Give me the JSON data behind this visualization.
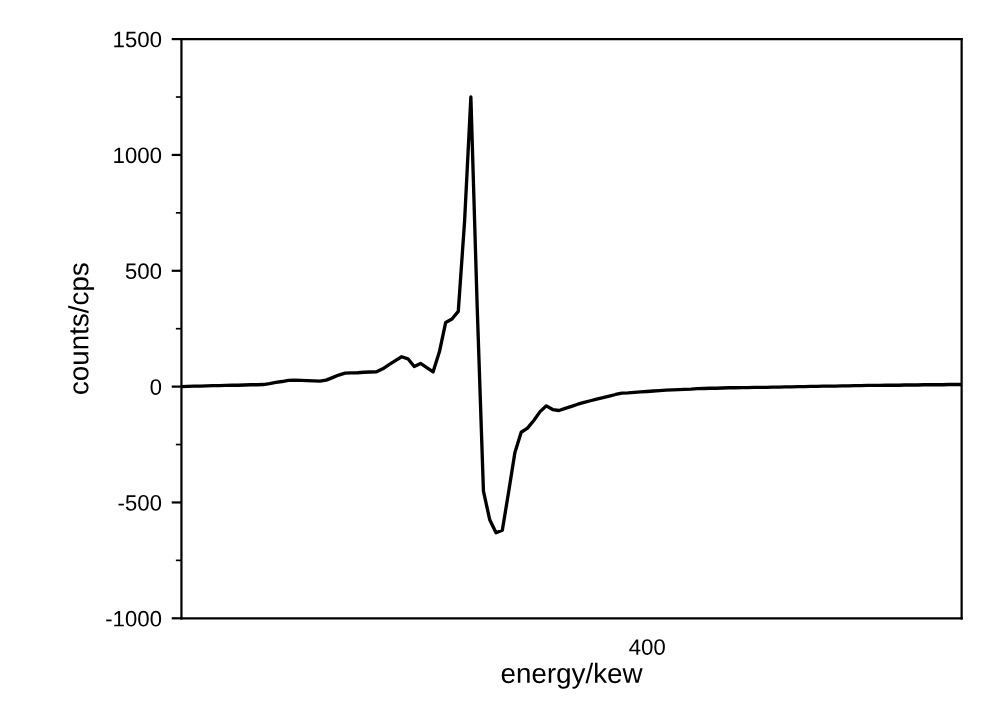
{
  "chart_data": {
    "type": "line",
    "xlabel": "energy/kew",
    "ylabel": "counts/cps",
    "annotations": [
      "400"
    ],
    "categories": [
      null,
      null,
      null,
      null,
      null,
      null,
      null,
      null,
      null,
      null,
      null,
      null,
      null,
      null,
      null,
      null,
      null,
      null,
      null,
      null,
      null,
      null,
      null,
      null,
      null,
      null,
      null,
      null,
      null,
      null,
      null,
      null,
      null,
      null,
      null,
      null,
      null,
      null,
      null,
      null,
      null,
      null,
      null,
      null,
      null,
      null,
      null,
      null,
      null,
      null,
      null,
      null,
      null,
      null,
      null,
      null,
      null,
      null,
      null,
      null,
      null,
      null,
      null,
      null,
      null,
      null,
      null,
      null,
      null,
      null,
      null,
      null,
      null,
      null,
      null,
      null,
      null,
      null,
      null,
      null,
      null,
      null,
      null,
      null,
      null,
      null,
      null,
      null,
      null,
      null,
      null,
      null,
      null,
      null,
      null,
      null,
      null,
      null,
      null,
      null,
      null,
      null,
      null,
      null,
      null,
      null,
      null,
      null,
      null,
      null,
      null,
      null,
      null,
      null,
      null,
      null,
      null,
      null,
      null,
      null,
      null,
      null,
      null,
      null,
      null
    ],
    "ylim": [
      -1000,
      1500
    ],
    "yticks": [
      -1000,
      -500,
      0,
      500,
      1000,
      1500
    ],
    "grid": false,
    "legend": false,
    "marker": "none",
    "line_style": "solid",
    "series": [
      {
        "color": "#000000",
        "values": [
          0,
          1,
          2,
          2,
          3,
          4,
          4,
          5,
          6,
          6,
          7,
          8,
          8,
          9,
          13,
          18,
          22,
          27,
          28,
          27,
          26,
          25,
          24,
          28,
          39,
          50,
          58,
          59,
          60,
          62,
          63,
          64,
          77,
          95,
          112,
          129,
          120,
          87,
          100,
          82,
          64,
          150,
          277,
          292,
          325,
          713,
          1250,
          349,
          -451,
          -575,
          -631,
          -620,
          -455,
          -284,
          -197,
          -179,
          -146,
          -108,
          -83,
          -99,
          -103,
          -94,
          -85,
          -76,
          -68,
          -61,
          -54,
          -48,
          -41,
          -34,
          -28,
          -27,
          -25,
          -23,
          -21,
          -19,
          -17,
          -15,
          -14,
          -13,
          -12,
          -11,
          -9,
          -8,
          -7,
          -7,
          -6,
          -5,
          -5,
          -4,
          -4,
          -3,
          -3,
          -3,
          -2,
          -2,
          -1,
          -1,
          0,
          0,
          1,
          1,
          2,
          2,
          2,
          3,
          3,
          4,
          4,
          5,
          5,
          5,
          6,
          6,
          6,
          7,
          7,
          7,
          8,
          8,
          8,
          8,
          9,
          9,
          9
        ]
      }
    ]
  }
}
